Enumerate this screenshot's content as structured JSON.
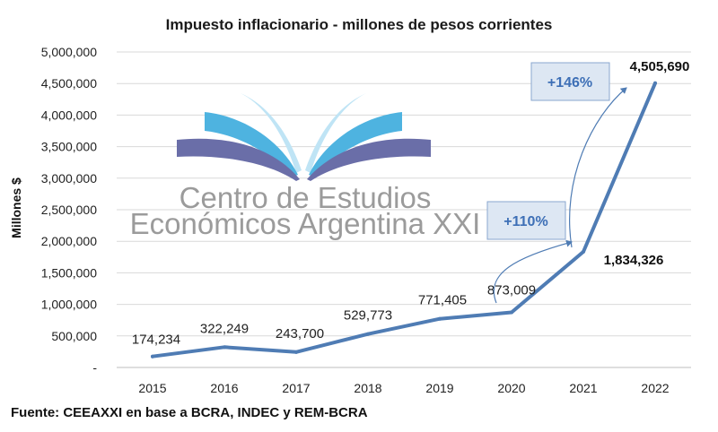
{
  "chart_data": {
    "type": "line",
    "title": "Impuesto inflacionario - millones de pesos corrientes",
    "ylabel": "Millones $",
    "xlabel": "",
    "categories": [
      "2015",
      "2016",
      "2017",
      "2018",
      "2019",
      "2020",
      "2021",
      "2022"
    ],
    "values": [
      174234,
      322249,
      243700,
      529773,
      771405,
      873009,
      1834326,
      4505690
    ],
    "data_labels": [
      "174,234",
      "322,249",
      "243,700",
      "529,773",
      "771,405",
      "873,009",
      "1,834,326",
      "4,505,690"
    ],
    "ylim": [
      0,
      5000000
    ],
    "yticks": [
      0,
      500000,
      1000000,
      1500000,
      2000000,
      2500000,
      3000000,
      3500000,
      4000000,
      4500000,
      5000000
    ],
    "ytick_labels": [
      "-",
      "500,000",
      "1,000,000",
      "1,500,000",
      "2,000,000",
      "2,500,000",
      "3,000,000",
      "3,500,000",
      "4,000,000",
      "4,500,000",
      "5,000,000"
    ],
    "grid": true,
    "series_color": "#4f7cb4",
    "annotations": [
      {
        "text": "+110%",
        "from": "2020",
        "to": "2021"
      },
      {
        "text": "+146%",
        "from": "2021",
        "to": "2022"
      }
    ]
  },
  "watermark": {
    "line1": "Centro de Estudios",
    "line2": "Económicos Argentina XXI",
    "colors": {
      "dark": "#6a6ea8",
      "mid": "#4eb3e0",
      "light": "#bfe4f5"
    }
  },
  "source": "Fuente: CEEAXXI en base a BCRA, INDEC y REM-BCRA"
}
